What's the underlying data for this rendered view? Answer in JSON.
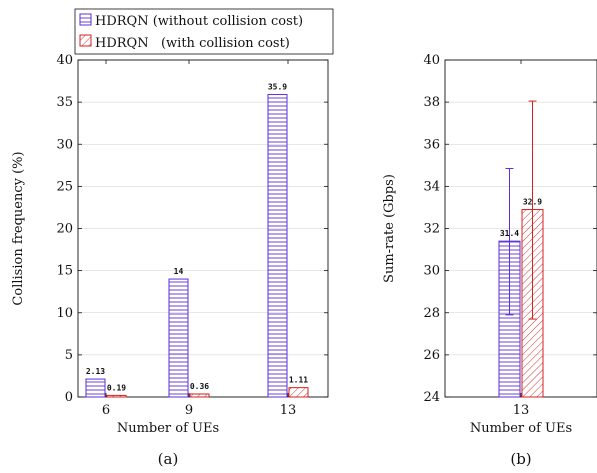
{
  "chart_data": [
    {
      "type": "bar",
      "ylabel": "Collision frequency (%)",
      "xlabel": "Number of UEs",
      "caption": "(a)",
      "categories": [
        "6",
        "9",
        "13"
      ],
      "ylim": [
        0,
        40
      ],
      "yticks": [
        0,
        5,
        10,
        15,
        20,
        25,
        30,
        35,
        40
      ],
      "grid": true,
      "legend_position": "top",
      "series": [
        {
          "name": "HDRQN (without collision cost)",
          "color": "#5b2fd6",
          "pattern": "horizontal-lines",
          "values": [
            2.13,
            14,
            35.9
          ],
          "labels": [
            "2.13",
            "14",
            "35.9"
          ]
        },
        {
          "name": "HDRQN   (with collision cost)",
          "color": "#d42020",
          "pattern": "diagonal-lines",
          "values": [
            0.19,
            0.36,
            1.11
          ],
          "labels": [
            "0.19",
            "0.36",
            "1.11"
          ]
        }
      ]
    },
    {
      "type": "bar",
      "ylabel": "Sum-rate (Gbps)",
      "xlabel": "Number of UEs",
      "caption": "(b)",
      "categories": [
        "13"
      ],
      "ylim": [
        24,
        40
      ],
      "yticks": [
        24,
        26,
        28,
        30,
        32,
        34,
        36,
        38,
        40
      ],
      "grid": true,
      "series": [
        {
          "name": "HDRQN (without collision cost)",
          "color": "#5b2fd6",
          "pattern": "horizontal-lines",
          "values": [
            31.4
          ],
          "labels": [
            "31.4"
          ],
          "error": [
            [
              27.9,
              34.85
            ]
          ]
        },
        {
          "name": "HDRQN   (with collision cost)",
          "color": "#d42020",
          "pattern": "diagonal-lines",
          "values": [
            32.9
          ],
          "labels": [
            "32.9"
          ],
          "error": [
            [
              27.7,
              38.05
            ]
          ]
        }
      ]
    }
  ]
}
